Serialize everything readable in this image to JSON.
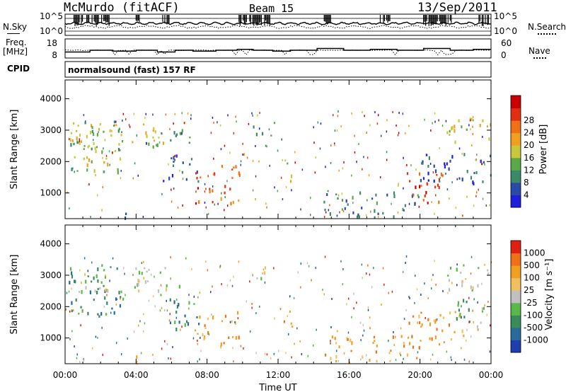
{
  "header": {
    "station": "McMurdo (fitACF)",
    "beam": "Beam 15",
    "date": "13/Sep/2011"
  },
  "side_labels": {
    "nsky": "N.Sky",
    "freq_line1": "Freq.",
    "freq_line2": "[MHz]",
    "cpid": "CPID",
    "nsearch": "N.Search",
    "nave": "Nave"
  },
  "cpid_text": "normalsound (fast) 157 RF",
  "chart_data": [
    {
      "type": "line",
      "name": "noise-panel",
      "left_axis": {
        "ticks": [
          "10^5",
          "10^0"
        ]
      },
      "right_axis": {
        "ticks": [
          "10^5",
          "10^0"
        ]
      },
      "series": [
        {
          "name": "N.Sky",
          "style": "solid"
        },
        {
          "name": "N.Search",
          "style": "dotted"
        }
      ]
    },
    {
      "type": "line",
      "name": "freq-panel",
      "left_axis": {
        "ticks": [
          18,
          8
        ],
        "range": [
          8,
          18
        ]
      },
      "right_axis": {
        "ticks": [
          60,
          0
        ],
        "range": [
          0,
          60
        ]
      },
      "series": [
        {
          "name": "Freq",
          "style": "solid",
          "x_hours": [
            0,
            1.2,
            1.4,
            2.5,
            2.7,
            3.8,
            4.0,
            5.0,
            5.2,
            6.0,
            6.2,
            7.0,
            7.2,
            8.3,
            8.5,
            9.5,
            9.7,
            10.4,
            10.6,
            11.5,
            11.7,
            12.5,
            12.7,
            14.0,
            14.2,
            15.5,
            15.7,
            17.0,
            17.2,
            18.5,
            18.7,
            20.0,
            20.2,
            21.5,
            21.7,
            22.8,
            23.0,
            24.0
          ],
          "y_mhz": [
            11,
            11,
            12,
            12,
            11.5,
            11.5,
            12,
            12,
            11,
            11,
            12,
            12,
            11.5,
            11.5,
            12,
            12,
            12.5,
            12.5,
            12,
            12,
            11.5,
            11.5,
            12,
            12,
            13,
            13,
            12,
            12,
            12.5,
            12.5,
            12,
            12,
            13,
            13,
            12,
            12,
            12.5,
            12.5
          ]
        },
        {
          "name": "Nave",
          "style": "dotted"
        }
      ]
    },
    {
      "type": "heatmap",
      "name": "power-panel",
      "xlabel": "Time UT",
      "ylabel": "Slant Range [km]",
      "xlim_hours": [
        0,
        24
      ],
      "xticks": [
        "00:00",
        "04:00",
        "08:00",
        "12:00",
        "16:00",
        "20:00",
        "00:00"
      ],
      "ylim_km": [
        180,
        4600
      ],
      "yticks": [
        1000,
        2000,
        3000,
        4000
      ],
      "colorbar": {
        "label": "Power [dB]",
        "ticks": [
          4,
          8,
          12,
          16,
          20,
          24,
          28
        ],
        "colors": [
          "#1f1fdb",
          "#2a4aa8",
          "#3a8a6a",
          "#5aa84a",
          "#c8c83a",
          "#f0a020",
          "#f07018",
          "#e03010",
          "#c80000"
        ]
      },
      "blobs": [
        {
          "t0": 0.2,
          "t1": 3.3,
          "r0": 1700,
          "r1": 3400,
          "level": 3
        },
        {
          "t0": 1.0,
          "t1": 2.6,
          "r0": 1900,
          "r1": 3200,
          "level": 4
        },
        {
          "t0": 0.2,
          "t1": 1.2,
          "r0": 2600,
          "r1": 3300,
          "level": 5
        },
        {
          "t0": 3.6,
          "t1": 5.5,
          "r0": 2500,
          "r1": 3300,
          "level": 4
        },
        {
          "t0": 4.5,
          "t1": 7.0,
          "r0": 2400,
          "r1": 3100,
          "level": 2
        },
        {
          "t0": 5.5,
          "t1": 7.5,
          "r0": 1400,
          "r1": 2300,
          "level": 1
        },
        {
          "t0": 7.2,
          "t1": 8.4,
          "r0": 700,
          "r1": 1800,
          "level": 7
        },
        {
          "t0": 8.6,
          "t1": 9.8,
          "r0": 700,
          "r1": 1900,
          "level": 6
        },
        {
          "t0": 9.6,
          "t1": 10.2,
          "r0": 1600,
          "r1": 2300,
          "level": 5
        },
        {
          "t0": 10.5,
          "t1": 11.8,
          "r0": 2800,
          "r1": 3300,
          "level": 3
        },
        {
          "t0": 12.2,
          "t1": 12.8,
          "r0": 1300,
          "r1": 2100,
          "level": 4
        },
        {
          "t0": 3.2,
          "t1": 4.6,
          "r0": 250,
          "r1": 450,
          "level": 0
        },
        {
          "t0": 14.5,
          "t1": 20.0,
          "r0": 250,
          "r1": 1100,
          "level": 2
        },
        {
          "t0": 19.2,
          "t1": 21.4,
          "r0": 700,
          "r1": 1800,
          "level": 7
        },
        {
          "t0": 20.0,
          "t1": 24.0,
          "r0": 1300,
          "r1": 2400,
          "level": 1
        },
        {
          "t0": 21.5,
          "t1": 24.0,
          "r0": 2600,
          "r1": 3400,
          "level": 4
        }
      ]
    },
    {
      "type": "heatmap",
      "name": "velocity-panel",
      "xlabel": "Time UT",
      "ylabel": "Slant Range [km]",
      "xlim_hours": [
        0,
        24
      ],
      "xticks": [
        "00:00",
        "04:00",
        "08:00",
        "12:00",
        "16:00",
        "20:00",
        "00:00"
      ],
      "ylim_km": [
        180,
        4600
      ],
      "yticks": [
        1000,
        2000,
        3000,
        4000
      ],
      "colorbar": {
        "label": "Velocity [m s⁻¹]",
        "ticks": [
          1000,
          500,
          100,
          25,
          -25,
          -100,
          -500,
          -1000
        ],
        "colors": [
          "#1f3fb0",
          "#2a6a9a",
          "#3a8a5a",
          "#5ab84a",
          "#c0c0c0",
          "#f0c060",
          "#f0a020",
          "#f07018",
          "#e02010"
        ]
      },
      "blobs": [
        {
          "t0": 0.2,
          "t1": 3.3,
          "r0": 1700,
          "r1": 3400,
          "level": 2
        },
        {
          "t0": 0.6,
          "t1": 2.4,
          "r0": 2400,
          "r1": 3200,
          "level": 4
        },
        {
          "t0": 3.6,
          "t1": 6.5,
          "r0": 2400,
          "r1": 3300,
          "level": 4
        },
        {
          "t0": 5.5,
          "t1": 7.5,
          "r0": 1300,
          "r1": 2300,
          "level": 2
        },
        {
          "t0": 7.2,
          "t1": 8.4,
          "r0": 700,
          "r1": 1800,
          "level": 6
        },
        {
          "t0": 8.6,
          "t1": 9.8,
          "r0": 700,
          "r1": 1900,
          "level": 6
        },
        {
          "t0": 10.5,
          "t1": 11.8,
          "r0": 2800,
          "r1": 3300,
          "level": 4
        },
        {
          "t0": 12.2,
          "t1": 12.8,
          "r0": 1300,
          "r1": 2100,
          "level": 6
        },
        {
          "t0": 3.2,
          "t1": 4.6,
          "r0": 250,
          "r1": 450,
          "level": 5
        },
        {
          "t0": 14.5,
          "t1": 20.0,
          "r0": 250,
          "r1": 1100,
          "level": 6
        },
        {
          "t0": 19.2,
          "t1": 22.5,
          "r0": 800,
          "r1": 1900,
          "level": 6
        },
        {
          "t0": 21.5,
          "t1": 24.0,
          "r0": 2500,
          "r1": 3400,
          "level": 4
        },
        {
          "t0": 22.0,
          "t1": 24.0,
          "r0": 1300,
          "r1": 2300,
          "level": 3
        }
      ]
    }
  ]
}
